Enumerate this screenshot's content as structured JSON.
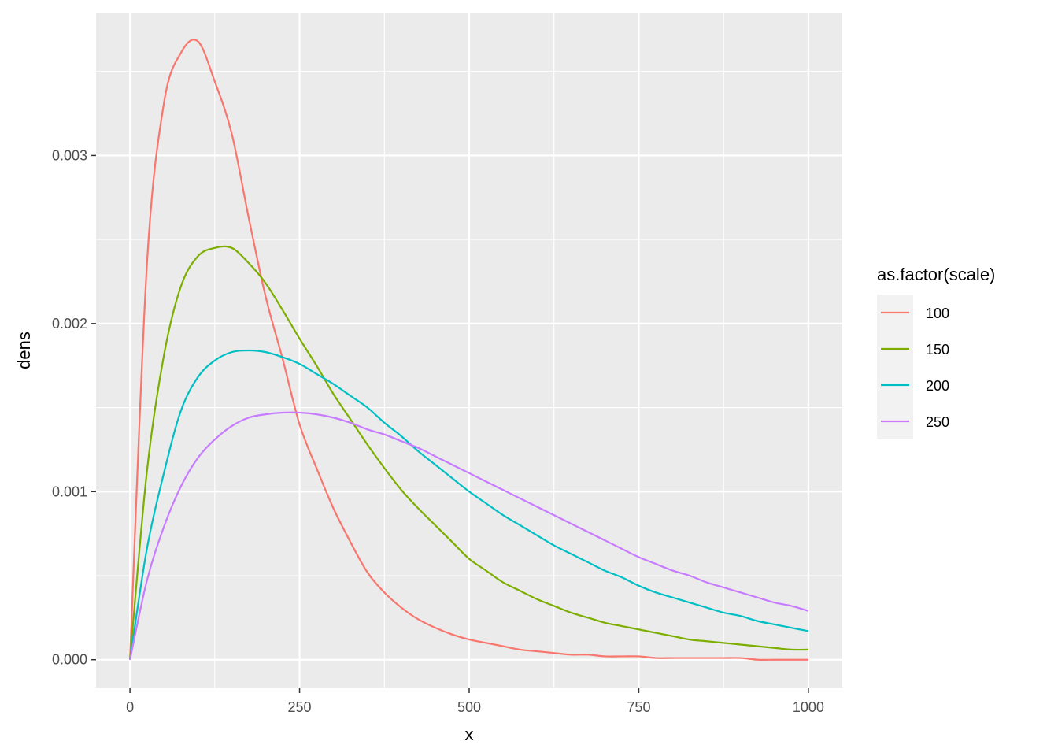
{
  "chart_data": {
    "type": "line",
    "title": "",
    "xlabel": "x",
    "ylabel": "dens",
    "xlim": [
      -50,
      1050
    ],
    "ylim": [
      -0.00017,
      0.00385
    ],
    "x_ticks": [
      0,
      250,
      500,
      750,
      1000
    ],
    "x_tick_labels": [
      "0",
      "250",
      "500",
      "750",
      "1000"
    ],
    "y_ticks": [
      0,
      0.001,
      0.002,
      0.003
    ],
    "y_tick_labels": [
      "0.000",
      "0.001",
      "0.002",
      "0.003"
    ],
    "grid": true,
    "legend": {
      "title": "as.factor(scale)",
      "position": "right"
    },
    "x": [
      0,
      25,
      50,
      75,
      100,
      125,
      150,
      175,
      200,
      225,
      250,
      275,
      300,
      325,
      350,
      375,
      400,
      425,
      450,
      475,
      500,
      525,
      550,
      575,
      600,
      625,
      650,
      675,
      700,
      725,
      750,
      775,
      800,
      825,
      850,
      875,
      900,
      925,
      950,
      975,
      1000
    ],
    "series": [
      {
        "name": "100",
        "color": "#F8766D",
        "values": [
          0,
          0.00235,
          0.00331,
          0.00361,
          0.00368,
          0.00344,
          0.00313,
          0.00263,
          0.00216,
          0.00179,
          0.0014,
          0.00114,
          0.0009,
          0.0007,
          0.00052,
          0.0004,
          0.00031,
          0.00024,
          0.00019,
          0.00015,
          0.00012,
          0.0001,
          8e-05,
          6e-05,
          5e-05,
          4e-05,
          3e-05,
          3e-05,
          2e-05,
          2e-05,
          2e-05,
          1e-05,
          1e-05,
          1e-05,
          1e-05,
          1e-05,
          1e-05,
          0.0,
          0.0,
          0.0,
          0.0
        ]
      },
      {
        "name": "150",
        "color": "#7CAE00",
        "values": [
          0,
          0.00112,
          0.00181,
          0.00222,
          0.0024,
          0.00245,
          0.00245,
          0.00236,
          0.00224,
          0.00208,
          0.00191,
          0.00175,
          0.00158,
          0.00143,
          0.00128,
          0.00114,
          0.00101,
          0.0009,
          0.0008,
          0.0007,
          0.0006,
          0.00053,
          0.00046,
          0.00041,
          0.00036,
          0.00032,
          0.00028,
          0.00025,
          0.00022,
          0.0002,
          0.00018,
          0.00016,
          0.00014,
          0.00012,
          0.00011,
          0.0001,
          9e-05,
          8e-05,
          7e-05,
          6e-05,
          6e-05
        ]
      },
      {
        "name": "200",
        "color": "#00BFC4",
        "values": [
          0,
          0.00066,
          0.00111,
          0.00148,
          0.00168,
          0.00178,
          0.00183,
          0.00184,
          0.00183,
          0.0018,
          0.00176,
          0.0017,
          0.00164,
          0.00157,
          0.0015,
          0.00141,
          0.00133,
          0.00124,
          0.00116,
          0.00108,
          0.001,
          0.00093,
          0.00086,
          0.0008,
          0.00074,
          0.00068,
          0.00063,
          0.00058,
          0.00053,
          0.00049,
          0.00044,
          0.0004,
          0.00037,
          0.00034,
          0.00031,
          0.00028,
          0.00026,
          0.00023,
          0.00021,
          0.00019,
          0.00017
        ]
      },
      {
        "name": "250",
        "color": "#C77CFF",
        "values": [
          0,
          0.00047,
          0.00079,
          0.00103,
          0.0012,
          0.00131,
          0.00139,
          0.00144,
          0.00146,
          0.00147,
          0.00147,
          0.00146,
          0.00144,
          0.00141,
          0.00137,
          0.00134,
          0.0013,
          0.00126,
          0.00121,
          0.00116,
          0.00111,
          0.00106,
          0.00101,
          0.00096,
          0.00091,
          0.00086,
          0.00081,
          0.00076,
          0.00071,
          0.00066,
          0.00061,
          0.00057,
          0.00053,
          0.0005,
          0.00046,
          0.00043,
          0.0004,
          0.00037,
          0.00034,
          0.00032,
          0.00029
        ]
      }
    ]
  }
}
